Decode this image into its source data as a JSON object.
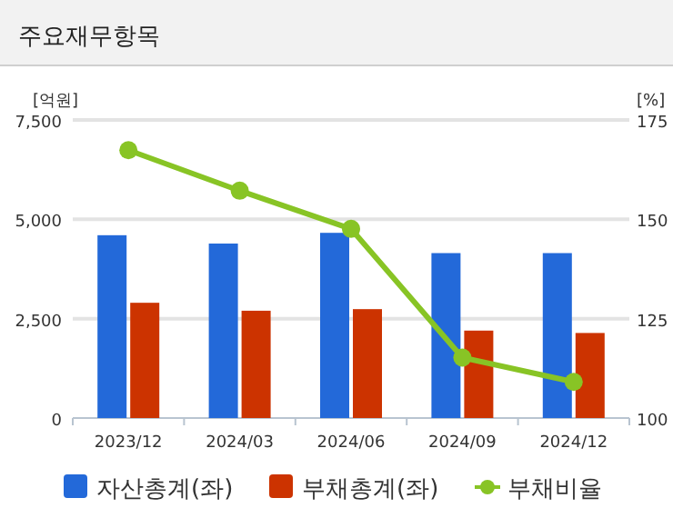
{
  "chart_data": {
    "type": "bar",
    "title": "주요재무항목",
    "ylabel": "[억원]",
    "y2label": "[%]",
    "categories": [
      "2023/12",
      "2024/03",
      "2024/06",
      "2024/09",
      "2024/12"
    ],
    "series": [
      {
        "name": "자산총계(좌)",
        "color": "#2369d9",
        "values": [
          4600,
          4390,
          4660,
          4150,
          4150
        ]
      },
      {
        "name": "부채총계(좌)",
        "color": "#cc3300",
        "values": [
          2900,
          2700,
          2740,
          2200,
          2140
        ]
      },
      {
        "name": "부채비율",
        "type": "line",
        "axis": "y2",
        "color": "#88c425",
        "values": [
          167.4,
          157.2,
          147.6,
          115.2,
          109.1
        ]
      }
    ],
    "ylim": [
      0,
      7500
    ],
    "yticks": [
      0,
      {
        "value": 2500,
        "label": "2,500"
      },
      {
        "value": 5000,
        "label": "5,000"
      },
      {
        "value": 7500,
        "label": "7,500"
      }
    ],
    "y2lim": [
      100,
      175
    ],
    "y2ticks": [
      100,
      125,
      150,
      175
    ],
    "grid": "y",
    "legend": "bottom",
    "marker": "circle",
    "line_style": "solid"
  }
}
